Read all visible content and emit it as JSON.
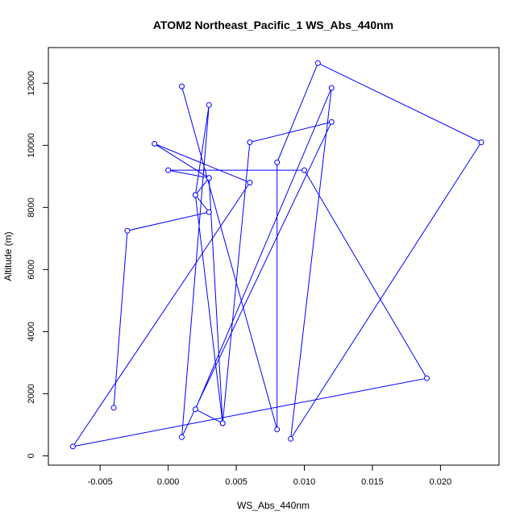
{
  "chart_data": {
    "type": "line",
    "title": "ATOM2 Northeast_Pacific_1 WS_Abs_440nm",
    "xlabel": "WS_Abs_440nm",
    "ylabel": "Altitude (m)",
    "xlim": [
      -0.0088,
      0.0243
    ],
    "ylim": [
      -300,
      13150
    ],
    "x_ticks": [
      -0.005,
      0.0,
      0.005,
      0.01,
      0.015,
      0.02
    ],
    "x_tick_labels": [
      "-0.005",
      "0.000",
      "0.005",
      "0.010",
      "0.015",
      "0.020"
    ],
    "y_ticks": [
      0,
      2000,
      4000,
      6000,
      8000,
      10000,
      12000
    ],
    "y_tick_labels": [
      "0",
      "2000",
      "4000",
      "6000",
      "8000",
      "10000",
      "12000"
    ],
    "grid": false,
    "series_color": "#0000ff",
    "series": [
      {
        "x": [
          0.001,
          0.008,
          0.008,
          0.011,
          0.023,
          0.009,
          0.012,
          0.002,
          0.004,
          0.002,
          0.003,
          0.001,
          0.012,
          0.006,
          0.004,
          0.003,
          -0.001,
          0.006,
          -0.007,
          0.019,
          0.01,
          0.0,
          0.003,
          0.002,
          0.003,
          -0.003,
          -0.004
        ],
        "y": [
          11900,
          850,
          9450,
          12650,
          10100,
          550,
          11850,
          1500,
          1050,
          8400,
          11300,
          600,
          10750,
          10100,
          1050,
          8950,
          10050,
          8800,
          300,
          2500,
          9200,
          9200,
          8950,
          8400,
          7850,
          7250,
          1550
        ]
      }
    ]
  }
}
